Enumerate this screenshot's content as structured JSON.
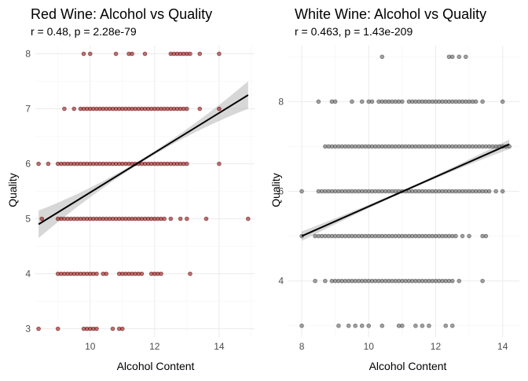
{
  "chart_data": [
    {
      "type": "scatter",
      "title": "Red Wine: Alcohol vs Quality",
      "subtitle": "r = 0.48, p = 2.28e-79",
      "xlabel": "Alcohol Content",
      "ylabel": "Quality",
      "xlim": [
        8.3,
        15.1
      ],
      "ylim": [
        2.85,
        8.15
      ],
      "x_ticks": [
        10,
        12,
        14
      ],
      "y_ticks": [
        3,
        4,
        5,
        6,
        7,
        8
      ],
      "grid": true,
      "legend": "none",
      "point_color": "#8b0000",
      "fit_line": {
        "x": [
          8.4,
          14.9
        ],
        "y": [
          4.9,
          7.25
        ],
        "color": "#000000"
      },
      "series": [
        {
          "quality": 8,
          "alcohol": [
            9.8,
            10.0,
            10.8,
            11.2,
            11.3,
            11.7,
            12.5,
            12.6,
            12.7,
            12.8,
            12.9,
            13.0,
            13.1,
            13.4,
            14.0
          ]
        },
        {
          "quality": 7,
          "alcohol": [
            9.2,
            9.5,
            9.7,
            9.8,
            9.9,
            10.0,
            10.1,
            10.2,
            10.3,
            10.4,
            10.5,
            10.6,
            10.7,
            10.8,
            10.9,
            11.0,
            11.1,
            11.2,
            11.3,
            11.4,
            11.5,
            11.6,
            11.7,
            11.8,
            11.9,
            12.0,
            12.1,
            12.2,
            12.3,
            12.4,
            12.5,
            12.6,
            12.7,
            12.8,
            12.9,
            13.0,
            13.4,
            14.0
          ]
        },
        {
          "quality": 6,
          "alcohol": [
            8.4,
            8.7,
            9.0,
            9.1,
            9.2,
            9.3,
            9.4,
            9.5,
            9.6,
            9.7,
            9.8,
            9.9,
            10.0,
            10.1,
            10.2,
            10.3,
            10.4,
            10.5,
            10.6,
            10.7,
            10.8,
            10.9,
            11.0,
            11.1,
            11.2,
            11.3,
            11.4,
            11.5,
            11.6,
            11.7,
            11.8,
            11.9,
            12.0,
            12.1,
            12.2,
            12.3,
            12.4,
            12.5,
            12.6,
            12.7,
            12.8,
            12.9,
            13.0,
            14.0
          ]
        },
        {
          "quality": 5,
          "alcohol": [
            8.5,
            9.0,
            9.1,
            9.2,
            9.3,
            9.4,
            9.5,
            9.6,
            9.7,
            9.8,
            9.9,
            10.0,
            10.1,
            10.2,
            10.3,
            10.4,
            10.5,
            10.6,
            10.7,
            10.8,
            10.9,
            11.0,
            11.1,
            11.2,
            11.3,
            11.4,
            11.5,
            11.6,
            11.7,
            11.8,
            11.9,
            12.0,
            12.1,
            12.2,
            12.3,
            12.5,
            12.8,
            13.0,
            13.6,
            14.9
          ]
        },
        {
          "quality": 4,
          "alcohol": [
            9.0,
            9.1,
            9.2,
            9.3,
            9.4,
            9.5,
            9.6,
            9.7,
            9.8,
            9.9,
            10.0,
            10.1,
            10.2,
            10.4,
            10.5,
            10.9,
            11.0,
            11.1,
            11.2,
            11.3,
            11.4,
            11.5,
            11.6,
            11.9,
            12.0,
            12.1,
            12.2,
            13.1
          ]
        },
        {
          "quality": 3,
          "alcohol": [
            8.4,
            9.0,
            9.8,
            9.9,
            10.0,
            10.1,
            10.2,
            10.7,
            10.9,
            11.0
          ]
        }
      ]
    },
    {
      "type": "scatter",
      "title": "White Wine: Alcohol vs Quality",
      "subtitle": "r = 0.463, p = 1.43e-209",
      "xlabel": "Alcohol Content",
      "ylabel": "Quality",
      "xlim": [
        7.6,
        14.5
      ],
      "ylim": [
        2.75,
        9.25
      ],
      "x_ticks": [
        8,
        10,
        12,
        14
      ],
      "y_ticks": [
        4,
        6,
        8
      ],
      "grid": true,
      "legend": "none",
      "point_color": "#555555",
      "fit_line": {
        "x": [
          8.0,
          14.2
        ],
        "y": [
          5.0,
          7.05
        ],
        "color": "#000000"
      },
      "series": [
        {
          "quality": 9,
          "alcohol": [
            10.4,
            12.4,
            12.5,
            12.7,
            12.9
          ]
        },
        {
          "quality": 8,
          "alcohol": [
            8.5,
            8.9,
            9.0,
            9.5,
            9.8,
            10.0,
            10.1,
            10.3,
            10.4,
            10.5,
            10.6,
            10.7,
            10.8,
            10.9,
            11.0,
            11.2,
            11.3,
            11.4,
            11.5,
            11.6,
            11.7,
            11.8,
            11.9,
            12.0,
            12.1,
            12.2,
            12.3,
            12.4,
            12.5,
            12.6,
            12.7,
            12.8,
            12.9,
            13.0,
            13.1,
            13.2,
            13.4,
            14.0
          ]
        },
        {
          "quality": 7,
          "alcohol": [
            8.7,
            8.8,
            8.9,
            9.0,
            9.1,
            9.2,
            9.3,
            9.4,
            9.5,
            9.6,
            9.7,
            9.8,
            9.9,
            10.0,
            10.1,
            10.2,
            10.3,
            10.4,
            10.5,
            10.6,
            10.7,
            10.8,
            10.9,
            11.0,
            11.1,
            11.2,
            11.3,
            11.4,
            11.5,
            11.6,
            11.7,
            11.8,
            11.9,
            12.0,
            12.1,
            12.2,
            12.3,
            12.4,
            12.5,
            12.6,
            12.7,
            12.8,
            12.9,
            13.0,
            13.1,
            13.2,
            13.3,
            13.4,
            13.5,
            13.6,
            13.7,
            13.8,
            13.9,
            14.0,
            14.1,
            14.2
          ]
        },
        {
          "quality": 6,
          "alcohol": [
            8.0,
            8.5,
            8.6,
            8.7,
            8.8,
            8.9,
            9.0,
            9.1,
            9.2,
            9.3,
            9.4,
            9.5,
            9.6,
            9.7,
            9.8,
            9.9,
            10.0,
            10.1,
            10.2,
            10.3,
            10.4,
            10.5,
            10.6,
            10.7,
            10.8,
            10.9,
            11.0,
            11.1,
            11.2,
            11.3,
            11.4,
            11.5,
            11.6,
            11.7,
            11.8,
            11.9,
            12.0,
            12.1,
            12.2,
            12.3,
            12.4,
            12.5,
            12.6,
            12.7,
            12.8,
            12.9,
            13.0,
            13.1,
            13.2,
            13.3,
            13.4,
            13.5,
            13.6,
            13.8,
            14.0
          ]
        },
        {
          "quality": 5,
          "alcohol": [
            8.0,
            8.4,
            8.5,
            8.6,
            8.7,
            8.8,
            8.9,
            9.0,
            9.1,
            9.2,
            9.3,
            9.4,
            9.5,
            9.6,
            9.7,
            9.8,
            9.9,
            10.0,
            10.1,
            10.2,
            10.3,
            10.4,
            10.5,
            10.6,
            10.7,
            10.8,
            10.9,
            11.0,
            11.1,
            11.2,
            11.3,
            11.4,
            11.5,
            11.6,
            11.7,
            11.8,
            11.9,
            12.0,
            12.1,
            12.2,
            12.3,
            12.4,
            12.5,
            12.6,
            12.8,
            13.0,
            13.4,
            13.5
          ]
        },
        {
          "quality": 4,
          "alcohol": [
            8.4,
            8.7,
            8.9,
            9.0,
            9.1,
            9.2,
            9.3,
            9.4,
            9.5,
            9.6,
            9.7,
            9.8,
            9.9,
            10.0,
            10.1,
            10.2,
            10.3,
            10.4,
            10.5,
            10.6,
            10.7,
            10.8,
            10.9,
            11.0,
            11.1,
            11.2,
            11.3,
            11.4,
            11.5,
            11.6,
            11.7,
            11.8,
            11.9,
            12.0,
            12.1,
            12.2,
            12.3,
            12.4,
            12.5,
            12.7,
            13.4
          ]
        },
        {
          "quality": 3,
          "alcohol": [
            8.0,
            9.1,
            9.4,
            9.6,
            9.8,
            10.0,
            10.4,
            10.9,
            11.0,
            11.4,
            11.6,
            11.8,
            12.3,
            12.5
          ]
        }
      ]
    }
  ]
}
